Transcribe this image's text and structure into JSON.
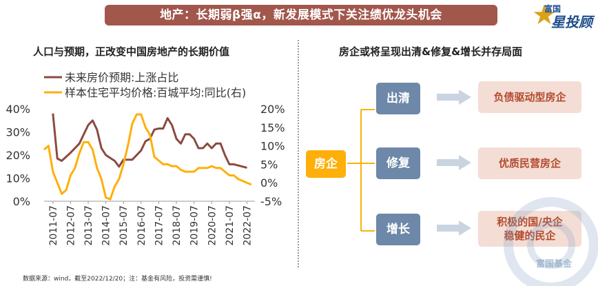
{
  "banner": {
    "title": "地产：长期弱β强α，新发展模式下关注绩优龙头机会"
  },
  "logo": {
    "line1": "富国",
    "line2": "星投顾"
  },
  "left": {
    "title": "人口与预期，正改变中国房地产的长期价值"
  },
  "right": {
    "title": "房企或将呈现出清&修复&增长并存局面",
    "center": "房企",
    "rows": [
      {
        "label": "出清",
        "result": "负债驱动型房企"
      },
      {
        "label": "修复",
        "result": "优质民营房企"
      },
      {
        "label": "增长",
        "result": "积极的国/央企\n稳健的民企"
      }
    ],
    "colors": {
      "center": "#ffaf0a",
      "mid": "#6d88a8",
      "result_bg": "#f4ddd5",
      "result_text": "#b24a2d",
      "arrow": "#c9d4e0",
      "bracket": "#ffaf0a"
    }
  },
  "footnote": "数据来源：wind，截至2022/12/20；注：基金有风险，投资需谨慎!",
  "watermark": {
    "text": "富国基金"
  },
  "chart_data": {
    "type": "line",
    "x_categories": [
      "2011-07",
      "2012-07",
      "2013-07",
      "2014-07",
      "2015-07",
      "2016-07",
      "2017-07",
      "2018-07",
      "2019-07",
      "2020-07",
      "2021-07",
      "2022-07"
    ],
    "y_left": {
      "ticks": [
        "0%",
        "10%",
        "20%",
        "30%",
        "40%"
      ],
      "range": [
        0,
        40
      ]
    },
    "y_right": {
      "ticks": [
        "-5%",
        "0%",
        "5%",
        "10%",
        "15%",
        "20%"
      ],
      "range": [
        -5,
        20
      ]
    },
    "series": [
      {
        "name": "未来房价预期:上涨占比",
        "axis": "left",
        "color": "#8b4a40",
        "points": [
          [
            "2011-07",
            38
          ],
          [
            "2011-10",
            18.5
          ],
          [
            "2012-01",
            17.5
          ],
          [
            "2012-07",
            21
          ],
          [
            "2013-01",
            25
          ],
          [
            "2013-07",
            33
          ],
          [
            "2013-10",
            35
          ],
          [
            "2014-01",
            31
          ],
          [
            "2014-04",
            23
          ],
          [
            "2014-07",
            20
          ],
          [
            "2015-01",
            17.5
          ],
          [
            "2015-04",
            15
          ],
          [
            "2015-07",
            18
          ],
          [
            "2016-01",
            18
          ],
          [
            "2016-07",
            22
          ],
          [
            "2016-10",
            26
          ],
          [
            "2017-01",
            27
          ],
          [
            "2017-04",
            31
          ],
          [
            "2017-07",
            31.5
          ],
          [
            "2017-10",
            31.5
          ],
          [
            "2018-01",
            36
          ],
          [
            "2018-04",
            33
          ],
          [
            "2018-07",
            27
          ],
          [
            "2018-10",
            25
          ],
          [
            "2019-01",
            29
          ],
          [
            "2019-04",
            29
          ],
          [
            "2019-07",
            27
          ],
          [
            "2019-10",
            23
          ],
          [
            "2020-01",
            23
          ],
          [
            "2020-04",
            25
          ],
          [
            "2020-07",
            23
          ],
          [
            "2020-10",
            25
          ],
          [
            "2021-01",
            25
          ],
          [
            "2021-04",
            20
          ],
          [
            "2021-07",
            16
          ],
          [
            "2021-10",
            16
          ],
          [
            "2022-01",
            15.5
          ],
          [
            "2022-07",
            14.5
          ]
        ]
      },
      {
        "name": "样本住宅平均价格:百城平均:同比(右)",
        "axis": "right",
        "color": "#ffaf0a",
        "points": [
          [
            "2011-01",
            9
          ],
          [
            "2011-04",
            10
          ],
          [
            "2011-07",
            3
          ],
          [
            "2011-10",
            0
          ],
          [
            "2012-01",
            -3
          ],
          [
            "2012-04",
            -2
          ],
          [
            "2012-07",
            2
          ],
          [
            "2012-10",
            4
          ],
          [
            "2013-01",
            8
          ],
          [
            "2013-04",
            11
          ],
          [
            "2013-07",
            11
          ],
          [
            "2013-10",
            9
          ],
          [
            "2014-01",
            4
          ],
          [
            "2014-04",
            1
          ],
          [
            "2014-07",
            -4
          ],
          [
            "2014-10",
            -4.5
          ],
          [
            "2015-01",
            -1
          ],
          [
            "2015-04",
            1
          ],
          [
            "2015-07",
            5
          ],
          [
            "2015-10",
            10
          ],
          [
            "2016-01",
            16
          ],
          [
            "2016-04",
            18.5
          ],
          [
            "2016-07",
            18.5
          ],
          [
            "2016-10",
            15
          ],
          [
            "2017-01",
            13
          ],
          [
            "2017-04",
            7
          ],
          [
            "2017-07",
            6
          ],
          [
            "2017-10",
            5
          ],
          [
            "2018-01",
            5
          ],
          [
            "2018-04",
            4.5
          ],
          [
            "2018-07",
            4.5
          ],
          [
            "2018-10",
            3.5
          ],
          [
            "2019-01",
            3
          ],
          [
            "2019-04",
            3
          ],
          [
            "2019-07",
            3
          ],
          [
            "2019-10",
            4
          ],
          [
            "2020-01",
            4
          ],
          [
            "2020-04",
            4
          ],
          [
            "2020-07",
            4.5
          ],
          [
            "2020-10",
            4
          ],
          [
            "2021-01",
            4
          ],
          [
            "2021-04",
            3
          ],
          [
            "2021-07",
            2
          ],
          [
            "2021-10",
            2
          ],
          [
            "2022-01",
            1
          ],
          [
            "2022-04",
            0.5
          ],
          [
            "2022-07",
            0
          ],
          [
            "2022-10",
            -0.5
          ]
        ]
      }
    ],
    "legend_placement": "top-left",
    "grid": false
  }
}
